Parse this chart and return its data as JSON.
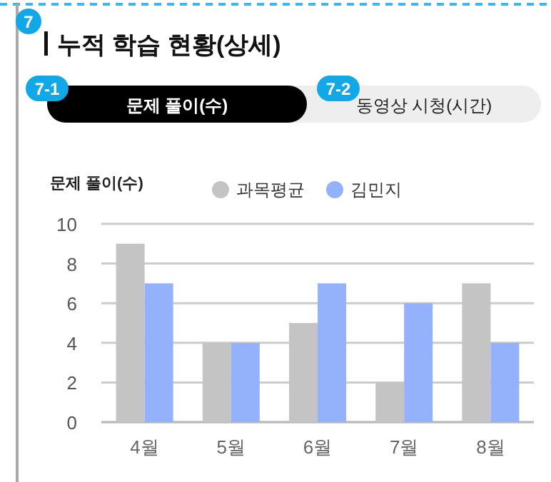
{
  "chart_data": {
    "type": "bar",
    "title": "누적 학습 현황(상세)",
    "annotations": [
      "7",
      "7-1",
      "문제 풀이(수)",
      "7-2",
      "동영상 시청(시간)"
    ],
    "ylabel": "문제 풀이(수)",
    "categories": [
      "4월",
      "5월",
      "6월",
      "7월",
      "8월"
    ],
    "series": [
      {
        "name": "과목평균",
        "color": "#c4c4c4",
        "values": [
          9,
          4,
          5,
          2,
          7
        ]
      },
      {
        "name": "김민지",
        "color": "#94b1fb",
        "values": [
          7,
          4,
          7,
          6,
          4
        ]
      }
    ],
    "ylim": [
      0,
      10
    ],
    "yticks": [
      0,
      2,
      4,
      6,
      8,
      10
    ],
    "grid": "y",
    "legend": "top"
  }
}
